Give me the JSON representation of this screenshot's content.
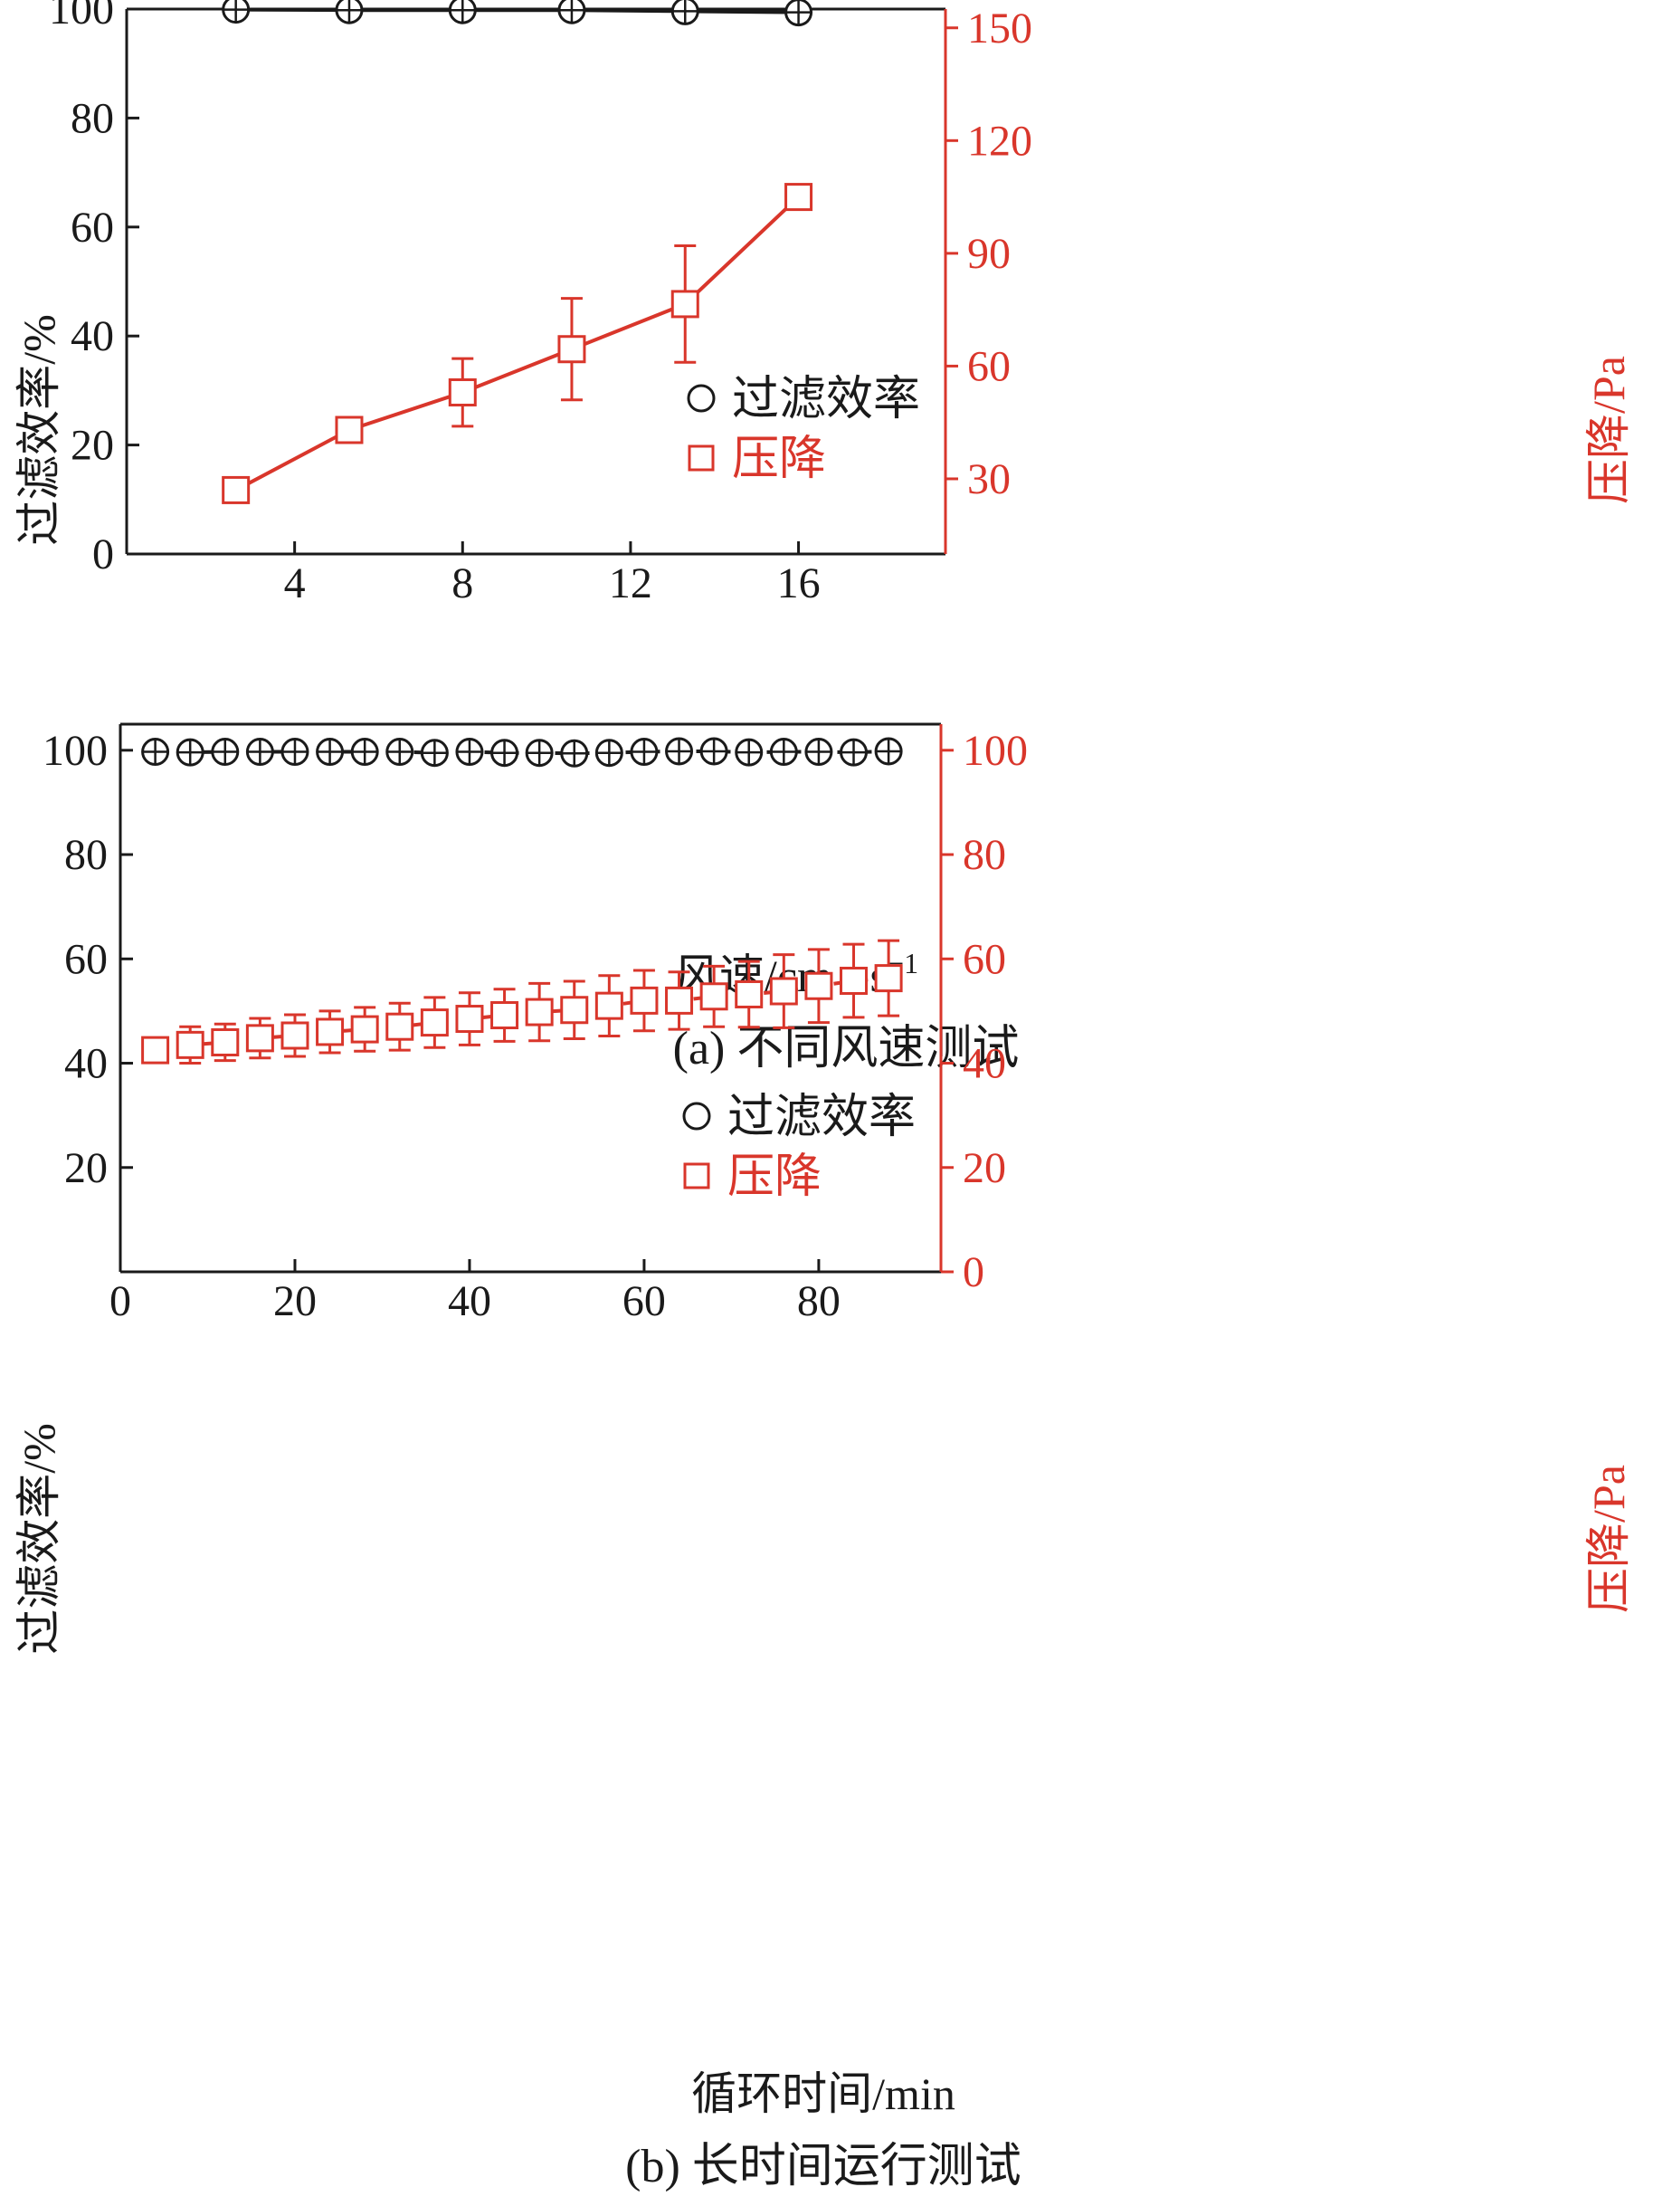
{
  "colors": {
    "black": "#1a1a1a",
    "red": "#d9362b"
  },
  "chart_data": [
    {
      "type": "line",
      "caption": "(a) 不同风速测试",
      "xlabel": "风速/cm · s",
      "xlabel_sup": "−1",
      "ylabel": "过滤效率/%",
      "ylabel_right": "压降/Pa",
      "xlim": [
        0,
        19.5
      ],
      "ylim": [
        0,
        100
      ],
      "ylim_right": [
        10,
        155
      ],
      "xticks": [
        4,
        8,
        12,
        16
      ],
      "yticks": [
        0,
        20,
        40,
        60,
        80,
        100
      ],
      "yticks_right": [
        30,
        60,
        90,
        120,
        150
      ],
      "x": [
        2.6,
        5.3,
        8.0,
        10.6,
        13.3,
        16.0
      ],
      "legend_position": "lower-right",
      "series": [
        {
          "name": "过滤效率",
          "axis": "left",
          "marker": "circle",
          "color": "#1a1a1a",
          "values": [
            99.9,
            99.8,
            99.8,
            99.8,
            99.6,
            99.4
          ],
          "err": [
            0.4,
            0.4,
            0.4,
            0.4,
            0.4,
            0.3
          ]
        },
        {
          "name": "压降",
          "axis": "right",
          "marker": "square",
          "color": "#d9362b",
          "values": [
            27,
            43,
            53,
            64.5,
            76.5,
            105
          ],
          "err": [
            1.5,
            1.5,
            9,
            13.5,
            15.5,
            1.5
          ]
        }
      ]
    },
    {
      "type": "line",
      "caption": "(b) 长时间运行测试",
      "xlabel": "循环时间/min",
      "ylabel": "过滤效率/%",
      "ylabel_right": "压降/Pa",
      "xlim": [
        0,
        94
      ],
      "ylim": [
        0,
        105
      ],
      "ylim_right": [
        0,
        105
      ],
      "xticks": [
        0,
        20,
        40,
        60,
        80
      ],
      "yticks": [
        20,
        40,
        60,
        80,
        100
      ],
      "yticks_right": [
        0,
        20,
        40,
        60,
        80,
        100
      ],
      "x": [
        4,
        8,
        12,
        16,
        20,
        24,
        28,
        32,
        36,
        40,
        44,
        48,
        52,
        56,
        60,
        64,
        68,
        72,
        76,
        80,
        84,
        88
      ],
      "legend_position": "lower-right",
      "series": [
        {
          "name": "过滤效率",
          "axis": "left",
          "marker": "circle",
          "color": "#1a1a1a",
          "values": [
            99.7,
            99.6,
            99.7,
            99.7,
            99.7,
            99.7,
            99.7,
            99.7,
            99.5,
            99.7,
            99.5,
            99.5,
            99.4,
            99.5,
            99.7,
            99.8,
            99.8,
            99.6,
            99.7,
            99.7,
            99.6,
            99.8
          ],
          "err": [
            0.4,
            0.4,
            0.4,
            0.4,
            0.4,
            0.4,
            0.4,
            0.4,
            0.4,
            0.4,
            0.4,
            0.4,
            0.4,
            0.4,
            0.4,
            0.4,
            0.4,
            0.4,
            0.4,
            0.4,
            0.4,
            0.4
          ]
        },
        {
          "name": "压降",
          "axis": "right",
          "marker": "square",
          "color": "#d9362b",
          "values": [
            42.5,
            43.5,
            44,
            44.8,
            45.3,
            46,
            46.5,
            47,
            47.8,
            48.5,
            49.2,
            49.8,
            50.2,
            51,
            52,
            52,
            52.8,
            53.2,
            53.8,
            54.8,
            55.8,
            56.3
          ],
          "err": [
            2.0,
            3.5,
            3.5,
            3.8,
            4.0,
            4.0,
            4.2,
            4.5,
            4.8,
            5.0,
            5.0,
            5.5,
            5.5,
            5.8,
            5.8,
            5.5,
            5.8,
            6.3,
            7.0,
            7.0,
            7.0,
            7.2
          ]
        }
      ]
    }
  ]
}
